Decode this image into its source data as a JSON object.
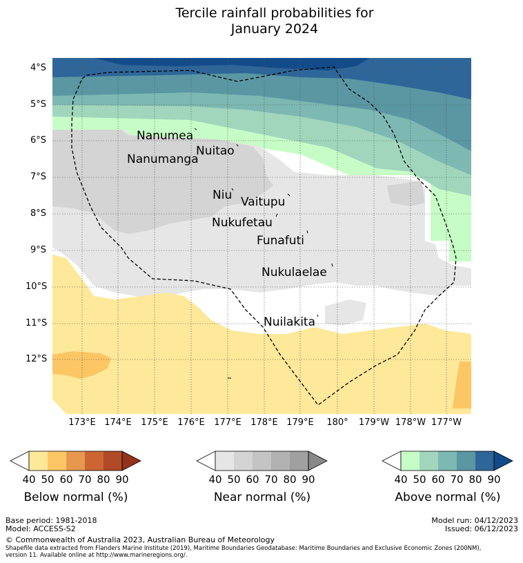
{
  "title_line1": "Tercile rainfall probabilities for",
  "title_line2": "January 2024",
  "lat_ticks": [
    "4°S",
    "5°S",
    "6°S",
    "7°S",
    "8°S",
    "9°S",
    "10°S",
    "11°S",
    "12°S"
  ],
  "lon_ticks": [
    "173°E",
    "174°E",
    "175°E",
    "176°E",
    "177°E",
    "178°E",
    "179°E",
    "180°",
    "179°W",
    "178°W",
    "177°W"
  ],
  "places": [
    "Nanumea",
    "Nuitao",
    "Nanumanga",
    "Niu",
    "Vaitupu",
    "Nukufetau",
    "Funafuti",
    "Nukulaelae",
    "Nuilakita"
  ],
  "legend": {
    "below": {
      "label": "Below normal (%)",
      "ticks": [
        "40",
        "50",
        "60",
        "70",
        "80",
        "90"
      ],
      "colors": [
        "#fee89a",
        "#fdc665",
        "#e6984e",
        "#cd6533",
        "#b04a27",
        "#93331a"
      ]
    },
    "near": {
      "label": "Near normal (%)",
      "ticks": [
        "40",
        "50",
        "60",
        "70",
        "80",
        "90"
      ],
      "colors": [
        "#e6e6e6",
        "#d4d4d4",
        "#c4c4c4",
        "#b2b2b2",
        "#a0a0a0",
        "#888888"
      ]
    },
    "above": {
      "label": "Above normal (%)",
      "ticks": [
        "40",
        "50",
        "60",
        "70",
        "80",
        "90"
      ],
      "colors": [
        "#c6fdc6",
        "#a1d6bd",
        "#7db8b2",
        "#5a97a3",
        "#2e6699",
        "#134b8a"
      ]
    }
  },
  "footer": {
    "base_period": "Base period: 1981-2018",
    "model": "Model: ACCESS-S2",
    "model_run": "Model run: 04/12/2023",
    "issued": "Issued: 06/12/2023",
    "copyright": "© Commonwealth of Australia 2023, Australian Bureau of Meteorology",
    "shapefile_line1": "Shapefile data extracted from Flanders Marine Institute (2019), Maritime Boundaries Geodatabase: Maritime Boundaries and Exclusive Economic Zones (200NM),",
    "shapefile_line2": "version 11. Available online at http://www.marineregions.org/."
  }
}
